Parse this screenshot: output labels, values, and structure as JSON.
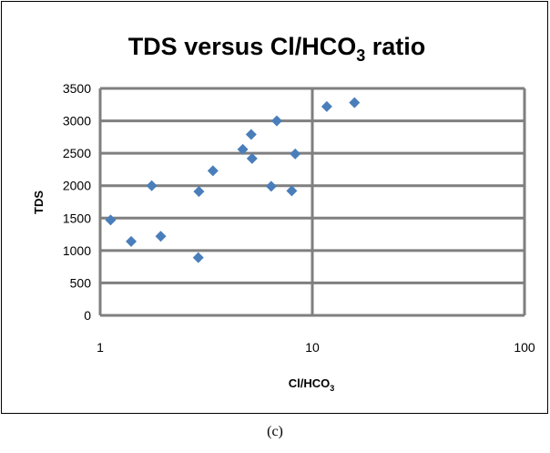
{
  "chart_data": {
    "type": "scatter",
    "title": {
      "main": "TDS versus Cl/HCO",
      "subscript": "3",
      "suffix": " ratio"
    },
    "xlabel": {
      "main": "Cl/HCO",
      "subscript": "3"
    },
    "ylabel": "TDS",
    "x_scale": "log",
    "xlim": [
      1,
      100
    ],
    "ylim": [
      0,
      3500
    ],
    "x_ticks": [
      1,
      10,
      100
    ],
    "y_ticks": [
      0,
      500,
      1000,
      1500,
      2000,
      2500,
      3000,
      3500
    ],
    "grid": {
      "horizontal": true,
      "vertical": true
    },
    "legend": "none",
    "marker": "diamond",
    "marker_color": "#4A7EBB",
    "series": [
      {
        "x": [
          1.12,
          1.4,
          1.75,
          1.93,
          2.9,
          2.92,
          3.4,
          4.7,
          5.15,
          5.2,
          6.4,
          6.8,
          8.0,
          8.3,
          11.7,
          15.8
        ],
        "y": [
          1470,
          1140,
          2000,
          1220,
          890,
          1910,
          2230,
          2560,
          2790,
          2420,
          1990,
          3000,
          1920,
          2490,
          3220,
          3280
        ]
      }
    ]
  },
  "caption": "(c)",
  "colors": {
    "frame": "#000000",
    "gridline": "#7f7f7f",
    "plot_border": "#7f7f7f",
    "marker": "#4A7EBB"
  }
}
